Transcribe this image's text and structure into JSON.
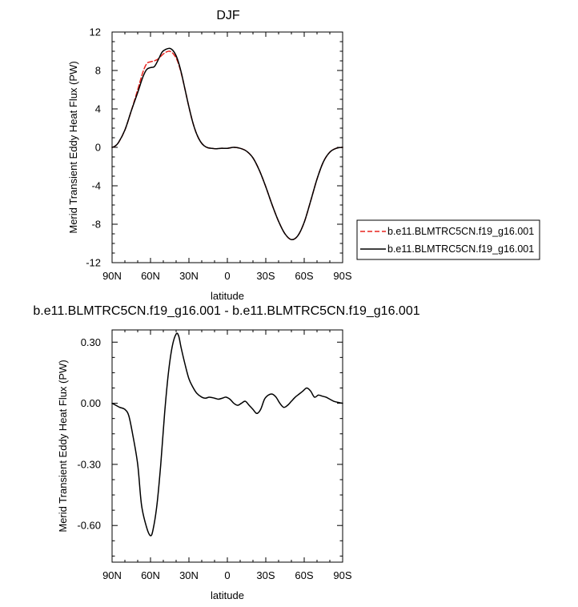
{
  "chart_data": [
    {
      "type": "line",
      "title": "DJF",
      "xlabel": "latitude",
      "ylabel": "Merid Transient Eddy Heat Flux (PW)",
      "x_axis_note": "x runs from 90N (left) to 90S (right); values are latitude in degrees, north positive",
      "xlim": [
        90,
        -90
      ],
      "ylim": [
        -12,
        12
      ],
      "x_ticks": [
        90,
        60,
        30,
        0,
        -30,
        -60,
        -90
      ],
      "x_tick_labels": [
        "90N",
        "60N",
        "30N",
        "0",
        "30S",
        "60S",
        "90S"
      ],
      "y_ticks": [
        12,
        8,
        4,
        0,
        -4,
        -8,
        -12
      ],
      "y_tick_labels": [
        "12",
        "8",
        "4",
        "0",
        "-4",
        "-8",
        "-12"
      ],
      "legend_position": "right",
      "series": [
        {
          "name": "b.e11.BLMTRC5CN.f19_g16.001",
          "color": "#e8241e",
          "dash": "dashed",
          "x": [
            90,
            88,
            85,
            80,
            75,
            70,
            66,
            63,
            60,
            57,
            54,
            51,
            48,
            45,
            42,
            39,
            36,
            33,
            30,
            27,
            24,
            21,
            18,
            15,
            12,
            9,
            5,
            0,
            -5,
            -10,
            -15,
            -20,
            -25,
            -30,
            -35,
            -40,
            -45,
            -50,
            -55,
            -60,
            -65,
            -70,
            -75,
            -80,
            -85,
            -90
          ],
          "y": [
            0,
            0.1,
            0.5,
            1.8,
            3.8,
            6.0,
            7.8,
            8.7,
            8.9,
            9.0,
            9.2,
            9.6,
            9.9,
            10.0,
            9.7,
            9.0,
            7.7,
            6.0,
            4.2,
            2.6,
            1.4,
            0.6,
            0.15,
            -0.05,
            -0.1,
            -0.15,
            -0.1,
            -0.1,
            0,
            -0.1,
            -0.4,
            -1.1,
            -2.4,
            -4.1,
            -6.0,
            -7.7,
            -9.0,
            -9.6,
            -9.2,
            -7.8,
            -5.6,
            -3.3,
            -1.5,
            -0.5,
            -0.1,
            0
          ]
        },
        {
          "name": "b.e11.BLMTRC5CN.f19_g16.001",
          "color": "#000000",
          "dash": "solid",
          "x": [
            90,
            88,
            85,
            80,
            75,
            70,
            66,
            63,
            60,
            57,
            54,
            51,
            48,
            45,
            42,
            39,
            36,
            33,
            30,
            27,
            24,
            21,
            18,
            15,
            12,
            9,
            5,
            0,
            -5,
            -10,
            -15,
            -20,
            -25,
            -30,
            -35,
            -40,
            -45,
            -50,
            -55,
            -60,
            -65,
            -70,
            -75,
            -80,
            -85,
            -90
          ],
          "y": [
            0,
            0.1,
            0.5,
            1.8,
            3.8,
            5.7,
            7.3,
            8.1,
            8.3,
            8.4,
            9.1,
            9.9,
            10.2,
            10.3,
            10.0,
            9.2,
            7.8,
            6.0,
            4.2,
            2.6,
            1.4,
            0.6,
            0.15,
            -0.05,
            -0.1,
            -0.15,
            -0.1,
            -0.1,
            0,
            -0.1,
            -0.4,
            -1.1,
            -2.4,
            -4.1,
            -6.0,
            -7.7,
            -9.0,
            -9.6,
            -9.2,
            -7.8,
            -5.6,
            -3.3,
            -1.5,
            -0.5,
            -0.1,
            0
          ]
        }
      ]
    },
    {
      "type": "line",
      "title": "b.e11.BLMTRC5CN.f19_g16.001 - b.e11.BLMTRC5CN.f19_g16.001",
      "xlabel": "latitude",
      "ylabel": "Merid Transient Eddy Heat Flux (PW)",
      "xlim": [
        90,
        -90
      ],
      "ylim": [
        -0.78,
        0.36
      ],
      "x_ticks": [
        90,
        60,
        30,
        0,
        -30,
        -60,
        -90
      ],
      "x_tick_labels": [
        "90N",
        "60N",
        "30N",
        "0",
        "30S",
        "60S",
        "90S"
      ],
      "y_ticks": [
        0.3,
        0,
        -0.3,
        -0.6
      ],
      "y_tick_labels": [
        "0.30",
        "0.00",
        "-0.30",
        "-0.60"
      ],
      "series": [
        {
          "color": "#000000",
          "dash": "solid",
          "x": [
            90,
            87,
            84,
            80,
            77,
            74,
            70,
            67,
            63,
            60,
            58,
            55,
            52,
            49,
            46,
            43,
            40,
            38,
            36,
            33,
            30,
            27,
            24,
            20,
            17,
            14,
            10,
            7,
            4,
            1,
            -2,
            -5,
            -8,
            -11,
            -14,
            -17,
            -20,
            -23,
            -26,
            -29,
            -32,
            -35,
            -38,
            -41,
            -44,
            -47,
            -50,
            -53,
            -56,
            -59,
            -62,
            -65,
            -68,
            -71,
            -74,
            -77,
            -80,
            -83,
            -86,
            -90
          ],
          "y": [
            0,
            -0.01,
            -0.02,
            -0.03,
            -0.06,
            -0.15,
            -0.3,
            -0.5,
            -0.61,
            -0.65,
            -0.62,
            -0.5,
            -0.3,
            -0.05,
            0.15,
            0.28,
            0.34,
            0.33,
            0.27,
            0.19,
            0.12,
            0.08,
            0.05,
            0.03,
            0.025,
            0.03,
            0.025,
            0.02,
            0.025,
            0.03,
            0.02,
            0.0,
            -0.01,
            0.0,
            0.01,
            -0.01,
            -0.03,
            -0.05,
            -0.03,
            0.02,
            0.04,
            0.045,
            0.03,
            0.0,
            -0.02,
            -0.01,
            0.01,
            0.03,
            0.045,
            0.06,
            0.075,
            0.06,
            0.03,
            0.04,
            0.035,
            0.03,
            0.02,
            0.01,
            0.005,
            0
          ]
        }
      ]
    }
  ]
}
